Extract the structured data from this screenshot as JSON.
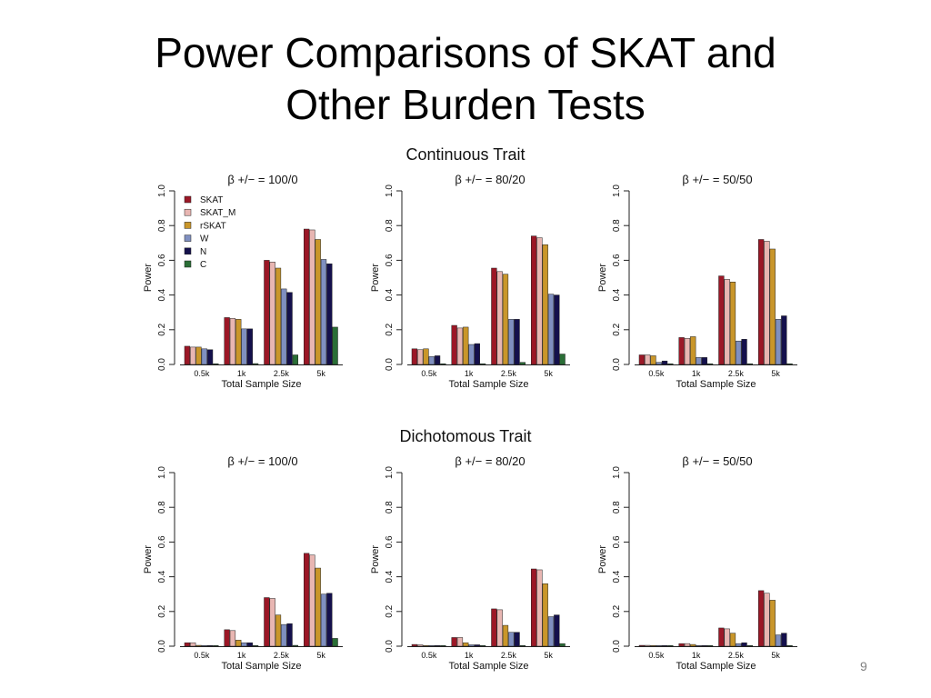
{
  "slide": {
    "title_line1": "Power Comparisons of SKAT and",
    "title_line2": "Other Burden Tests",
    "page_number": "9"
  },
  "sections": {
    "continuous": "Continuous Trait",
    "dichotomous": "Dichotomous Trait"
  },
  "colors": {
    "SKAT": "#9b1726",
    "SKAT_M": "#e8b6b2",
    "rSKAT": "#c9962a",
    "W": "#7f8fc0",
    "N": "#14104c",
    "C": "#2a6e36"
  },
  "chart_data": [
    {
      "type": "bar",
      "title": "β +/− = 100/0",
      "xlabel": "Total Sample Size",
      "ylabel": "Power",
      "ylim": [
        0,
        1
      ],
      "yticks": [
        "0.0",
        "0.2",
        "0.4",
        "0.6",
        "0.8",
        "1.0"
      ],
      "legend_position": "top-left",
      "categories": [
        "0.5k",
        "1k",
        "2.5k",
        "5k"
      ],
      "series": [
        {
          "name": "SKAT",
          "values": [
            0.105,
            0.27,
            0.6,
            0.78
          ]
        },
        {
          "name": "SKAT_M",
          "values": [
            0.1,
            0.265,
            0.59,
            0.775
          ]
        },
        {
          "name": "rSKAT",
          "values": [
            0.1,
            0.26,
            0.555,
            0.72
          ]
        },
        {
          "name": "W",
          "values": [
            0.09,
            0.205,
            0.435,
            0.605
          ]
        },
        {
          "name": "N",
          "values": [
            0.085,
            0.205,
            0.415,
            0.58
          ]
        },
        {
          "name": "C",
          "values": [
            0.003,
            0.005,
            0.055,
            0.215
          ]
        }
      ]
    },
    {
      "type": "bar",
      "title": "β +/− = 80/20",
      "xlabel": "Total Sample Size",
      "ylabel": "Power",
      "ylim": [
        0,
        1
      ],
      "yticks": [
        "0.0",
        "0.2",
        "0.4",
        "0.6",
        "0.8",
        "1.0"
      ],
      "categories": [
        "0.5k",
        "1k",
        "2.5k",
        "5k"
      ],
      "series": [
        {
          "name": "SKAT",
          "values": [
            0.09,
            0.225,
            0.555,
            0.74
          ]
        },
        {
          "name": "SKAT_M",
          "values": [
            0.085,
            0.21,
            0.535,
            0.73
          ]
        },
        {
          "name": "rSKAT",
          "values": [
            0.09,
            0.215,
            0.52,
            0.69
          ]
        },
        {
          "name": "W",
          "values": [
            0.045,
            0.115,
            0.26,
            0.405
          ]
        },
        {
          "name": "N",
          "values": [
            0.05,
            0.12,
            0.26,
            0.4
          ]
        },
        {
          "name": "C",
          "values": [
            0.002,
            0.003,
            0.012,
            0.06
          ]
        }
      ]
    },
    {
      "type": "bar",
      "title": "β +/− = 50/50",
      "xlabel": "Total Sample Size",
      "ylabel": "Power",
      "ylim": [
        0,
        1
      ],
      "yticks": [
        "0.0",
        "0.2",
        "0.4",
        "0.6",
        "0.8",
        "1.0"
      ],
      "categories": [
        "0.5k",
        "1k",
        "2.5k",
        "5k"
      ],
      "series": [
        {
          "name": "SKAT",
          "values": [
            0.055,
            0.155,
            0.51,
            0.72
          ]
        },
        {
          "name": "SKAT_M",
          "values": [
            0.055,
            0.15,
            0.49,
            0.71
          ]
        },
        {
          "name": "rSKAT",
          "values": [
            0.05,
            0.16,
            0.475,
            0.665
          ]
        },
        {
          "name": "W",
          "values": [
            0.012,
            0.04,
            0.135,
            0.26
          ]
        },
        {
          "name": "N",
          "values": [
            0.02,
            0.04,
            0.145,
            0.28
          ]
        },
        {
          "name": "C",
          "values": [
            0.001,
            0.001,
            0.002,
            0.002
          ]
        }
      ]
    },
    {
      "type": "bar",
      "title": "β +/− = 100/0",
      "xlabel": "Total Sample Size",
      "ylabel": "Power",
      "ylim": [
        0,
        1
      ],
      "yticks": [
        "0.0",
        "0.2",
        "0.4",
        "0.6",
        "0.8",
        "1.0"
      ],
      "categories": [
        "0.5k",
        "1k",
        "2.5k",
        "5k"
      ],
      "series": [
        {
          "name": "SKAT",
          "values": [
            0.02,
            0.095,
            0.28,
            0.535
          ]
        },
        {
          "name": "SKAT_M",
          "values": [
            0.02,
            0.09,
            0.275,
            0.525
          ]
        },
        {
          "name": "rSKAT",
          "values": [
            0.005,
            0.035,
            0.18,
            0.45
          ]
        },
        {
          "name": "W",
          "values": [
            0.003,
            0.02,
            0.125,
            0.3
          ]
        },
        {
          "name": "N",
          "values": [
            0.003,
            0.02,
            0.13,
            0.305
          ]
        },
        {
          "name": "C",
          "values": [
            0.001,
            0.002,
            0.005,
            0.045
          ]
        }
      ]
    },
    {
      "type": "bar",
      "title": "β +/− = 80/20",
      "xlabel": "Total Sample Size",
      "ylabel": "Power",
      "ylim": [
        0,
        1
      ],
      "yticks": [
        "0.0",
        "0.2",
        "0.4",
        "0.6",
        "0.8",
        "1.0"
      ],
      "categories": [
        "0.5k",
        "1k",
        "2.5k",
        "5k"
      ],
      "series": [
        {
          "name": "SKAT",
          "values": [
            0.01,
            0.05,
            0.215,
            0.445
          ]
        },
        {
          "name": "SKAT_M",
          "values": [
            0.008,
            0.05,
            0.21,
            0.44
          ]
        },
        {
          "name": "rSKAT",
          "values": [
            0.003,
            0.02,
            0.12,
            0.36
          ]
        },
        {
          "name": "W",
          "values": [
            0.002,
            0.008,
            0.08,
            0.17
          ]
        },
        {
          "name": "N",
          "values": [
            0.002,
            0.008,
            0.08,
            0.18
          ]
        },
        {
          "name": "C",
          "values": [
            0.001,
            0.001,
            0.003,
            0.015
          ]
        }
      ]
    },
    {
      "type": "bar",
      "title": "β +/− = 50/50",
      "xlabel": "Total Sample Size",
      "ylabel": "Power",
      "ylim": [
        0,
        1
      ],
      "yticks": [
        "0.0",
        "0.2",
        "0.4",
        "0.6",
        "0.8",
        "1.0"
      ],
      "categories": [
        "0.5k",
        "1k",
        "2.5k",
        "5k"
      ],
      "series": [
        {
          "name": "SKAT",
          "values": [
            0.005,
            0.015,
            0.105,
            0.32
          ]
        },
        {
          "name": "SKAT_M",
          "values": [
            0.005,
            0.015,
            0.1,
            0.305
          ]
        },
        {
          "name": "rSKAT",
          "values": [
            0.003,
            0.01,
            0.075,
            0.265
          ]
        },
        {
          "name": "W",
          "values": [
            0.001,
            0.004,
            0.015,
            0.065
          ]
        },
        {
          "name": "N",
          "values": [
            0.001,
            0.004,
            0.02,
            0.075
          ]
        },
        {
          "name": "C",
          "values": [
            0.001,
            0.001,
            0.001,
            0.002
          ]
        }
      ]
    }
  ]
}
